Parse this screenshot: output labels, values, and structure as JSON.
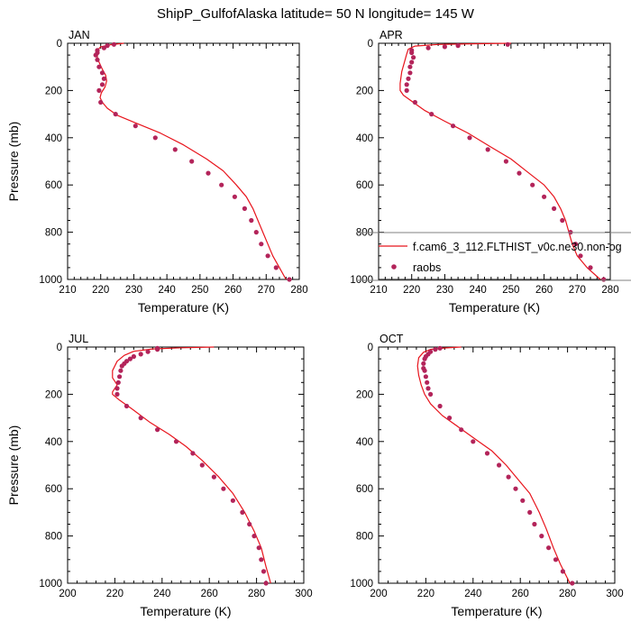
{
  "title": "ShipP_GulfofAlaska  latitude= 50 N longitude= 145 W",
  "colors": {
    "model": "#e8141c",
    "obs": "#b3245a",
    "axis": "#000000",
    "legend_box": "#808080"
  },
  "legend": {
    "model_label": "f.cam6_3_112.FLTHIST_v0c.ne30.non-og",
    "obs_label": "raobs"
  },
  "chart_data": [
    {
      "type": "line",
      "panel": "JAN",
      "xlabel": "Temperature (K)",
      "ylabel": "Pressure (mb)",
      "xlim": [
        210,
        280
      ],
      "ylim": [
        1000,
        0
      ],
      "xticks": [
        210,
        220,
        230,
        240,
        250,
        260,
        270,
        280
      ],
      "yticks": [
        0,
        200,
        400,
        600,
        800,
        1000
      ],
      "series": [
        {
          "name": "f.cam6_3_112.FLTHIST_v0c.ne30.non-og",
          "kind": "line",
          "points": [
            [
              227,
              0
            ],
            [
              223,
              6
            ],
            [
              220,
              15
            ],
            [
              219,
              30
            ],
            [
              219,
              60
            ],
            [
              219.5,
              80
            ],
            [
              220.5,
              110
            ],
            [
              221.5,
              135
            ],
            [
              221.8,
              160
            ],
            [
              221.3,
              185
            ],
            [
              220.2,
              210
            ],
            [
              219.8,
              230
            ],
            [
              220.5,
              250
            ],
            [
              222,
              275
            ],
            [
              225,
              305
            ],
            [
              231,
              340
            ],
            [
              238,
              380
            ],
            [
              245,
              430
            ],
            [
              252,
              490
            ],
            [
              257,
              540
            ],
            [
              261,
              600
            ],
            [
              264,
              650
            ],
            [
              266,
              700
            ],
            [
              267.5,
              750
            ],
            [
              269,
              800
            ],
            [
              270.5,
              850
            ],
            [
              272,
              900
            ],
            [
              274,
              950
            ],
            [
              276,
              1000
            ]
          ]
        },
        {
          "name": "raobs",
          "kind": "scatter",
          "points": [
            [
              224,
              5
            ],
            [
              222,
              10
            ],
            [
              221,
              20
            ],
            [
              219,
              30
            ],
            [
              219,
              40
            ],
            [
              218.5,
              50
            ],
            [
              219,
              70
            ],
            [
              219.5,
              100
            ],
            [
              220.5,
              125
            ],
            [
              221,
              150
            ],
            [
              220.5,
              175
            ],
            [
              219.5,
              200
            ],
            [
              220,
              250
            ],
            [
              224.5,
              300
            ],
            [
              230.5,
              350
            ],
            [
              236.5,
              400
            ],
            [
              242.5,
              450
            ],
            [
              247.5,
              500
            ],
            [
              252.5,
              550
            ],
            [
              256.5,
              600
            ],
            [
              260.5,
              650
            ],
            [
              263.5,
              700
            ],
            [
              265.5,
              750
            ],
            [
              267,
              800
            ],
            [
              268.5,
              850
            ],
            [
              270.5,
              900
            ],
            [
              273,
              950
            ],
            [
              277,
              1000
            ]
          ]
        }
      ]
    },
    {
      "type": "line",
      "panel": "APR",
      "xlabel": "Temperature (K)",
      "ylabel": "",
      "xlim": [
        210,
        280
      ],
      "ylim": [
        1000,
        0
      ],
      "xticks": [
        210,
        220,
        230,
        240,
        250,
        260,
        270,
        280
      ],
      "yticks": [
        0,
        200,
        400,
        600,
        800,
        1000
      ],
      "series": [
        {
          "name": "f.cam6_3_112.FLTHIST_v0c.ne30.non-og",
          "kind": "line",
          "points": [
            [
              250,
              0
            ],
            [
              240,
              2
            ],
            [
              228,
              5
            ],
            [
              221,
              12
            ],
            [
              219,
              25
            ],
            [
              218.5,
              45
            ],
            [
              218,
              70
            ],
            [
              217,
              120
            ],
            [
              216.5,
              170
            ],
            [
              216.5,
              200
            ],
            [
              217.5,
              220
            ],
            [
              220,
              245
            ],
            [
              224,
              285
            ],
            [
              230,
              330
            ],
            [
              237,
              380
            ],
            [
              244,
              440
            ],
            [
              250,
              490
            ],
            [
              255,
              545
            ],
            [
              260,
              600
            ],
            [
              263,
              650
            ],
            [
              265,
              700
            ],
            [
              266.5,
              750
            ],
            [
              267.5,
              800
            ],
            [
              268.5,
              850
            ],
            [
              270,
              900
            ],
            [
              273,
              950
            ],
            [
              277,
              1000
            ]
          ]
        },
        {
          "name": "raobs",
          "kind": "scatter",
          "points": [
            [
              249,
              5
            ],
            [
              234,
              10
            ],
            [
              230,
              15
            ],
            [
              225,
              20
            ],
            [
              220,
              30
            ],
            [
              220,
              40
            ],
            [
              220.5,
              60
            ],
            [
              220,
              80
            ],
            [
              219.5,
              100
            ],
            [
              219.5,
              125
            ],
            [
              219,
              150
            ],
            [
              218.5,
              175
            ],
            [
              218.5,
              200
            ],
            [
              221,
              250
            ],
            [
              226,
              300
            ],
            [
              232.5,
              350
            ],
            [
              237.5,
              400
            ],
            [
              243,
              450
            ],
            [
              248.5,
              500
            ],
            [
              252.5,
              550
            ],
            [
              256.5,
              600
            ],
            [
              260,
              650
            ],
            [
              263,
              700
            ],
            [
              265.5,
              750
            ],
            [
              268,
              800
            ],
            [
              269.5,
              850
            ],
            [
              271,
              900
            ],
            [
              274,
              950
            ],
            [
              278,
              1000
            ]
          ]
        }
      ]
    },
    {
      "type": "line",
      "panel": "JUL",
      "xlabel": "Temperature (K)",
      "ylabel": "Pressure (mb)",
      "xlim": [
        200,
        300
      ],
      "ylim": [
        1000,
        0
      ],
      "xticks": [
        200,
        220,
        240,
        260,
        280,
        300
      ],
      "yticks": [
        0,
        200,
        400,
        600,
        800,
        1000
      ],
      "series": [
        {
          "name": "f.cam6_3_112.FLTHIST_v0c.ne30.non-og",
          "kind": "line",
          "points": [
            [
              262,
              0
            ],
            [
              248,
              3
            ],
            [
              236,
              8
            ],
            [
              228,
              18
            ],
            [
              224,
              35
            ],
            [
              221,
              60
            ],
            [
              219,
              100
            ],
            [
              219,
              130
            ],
            [
              221,
              160
            ],
            [
              219,
              190
            ],
            [
              219,
              200
            ],
            [
              222,
              225
            ],
            [
              227,
              260
            ],
            [
              235,
              320
            ],
            [
              243,
              370
            ],
            [
              250,
              420
            ],
            [
              257,
              480
            ],
            [
              264,
              550
            ],
            [
              270,
              620
            ],
            [
              275,
              700
            ],
            [
              279,
              780
            ],
            [
              282,
              850
            ],
            [
              284,
              930
            ],
            [
              286,
              1000
            ]
          ]
        },
        {
          "name": "raobs",
          "kind": "scatter",
          "points": [
            [
              238,
              5
            ],
            [
              238,
              10
            ],
            [
              234,
              20
            ],
            [
              231,
              30
            ],
            [
              228,
              40
            ],
            [
              226.5,
              50
            ],
            [
              225,
              60
            ],
            [
              224,
              70
            ],
            [
              223,
              80
            ],
            [
              222.5,
              100
            ],
            [
              222,
              125
            ],
            [
              221.5,
              150
            ],
            [
              221,
              175
            ],
            [
              221,
              200
            ],
            [
              225,
              250
            ],
            [
              231,
              300
            ],
            [
              238,
              350
            ],
            [
              246,
              400
            ],
            [
              253,
              450
            ],
            [
              257,
              500
            ],
            [
              262,
              550
            ],
            [
              266,
              600
            ],
            [
              270,
              650
            ],
            [
              274,
              700
            ],
            [
              277,
              750
            ],
            [
              279,
              800
            ],
            [
              281,
              850
            ],
            [
              282,
              900
            ],
            [
              283,
              950
            ],
            [
              284,
              1000
            ]
          ]
        }
      ]
    },
    {
      "type": "line",
      "panel": "OCT",
      "xlabel": "Temperature (K)",
      "ylabel": "",
      "xlim": [
        200,
        300
      ],
      "ylim": [
        1000,
        0
      ],
      "xticks": [
        200,
        220,
        240,
        260,
        280,
        300
      ],
      "yticks": [
        0,
        200,
        400,
        600,
        800,
        1000
      ],
      "series": [
        {
          "name": "f.cam6_3_112.FLTHIST_v0c.ne30.non-og",
          "kind": "line",
          "points": [
            [
              235,
              0
            ],
            [
              228,
              4
            ],
            [
              222,
              10
            ],
            [
              219,
              22
            ],
            [
              217,
              45
            ],
            [
              216.5,
              80
            ],
            [
              217,
              120
            ],
            [
              218,
              160
            ],
            [
              219.5,
              200
            ],
            [
              222,
              240
            ],
            [
              227,
              290
            ],
            [
              234,
              340
            ],
            [
              241,
              390
            ],
            [
              248,
              440
            ],
            [
              254,
              500
            ],
            [
              259,
              560
            ],
            [
              264,
              620
            ],
            [
              268,
              700
            ],
            [
              271,
              770
            ],
            [
              274,
              850
            ],
            [
              277,
              920
            ],
            [
              281,
              1000
            ]
          ]
        },
        {
          "name": "raobs",
          "kind": "scatter",
          "points": [
            [
              226,
              5
            ],
            [
              224,
              10
            ],
            [
              222,
              20
            ],
            [
              221,
              30
            ],
            [
              220,
              40
            ],
            [
              219.5,
              50
            ],
            [
              219,
              70
            ],
            [
              219,
              90
            ],
            [
              219.5,
              100
            ],
            [
              220,
              125
            ],
            [
              220.5,
              150
            ],
            [
              221,
              175
            ],
            [
              222,
              200
            ],
            [
              226,
              250
            ],
            [
              230,
              300
            ],
            [
              235,
              350
            ],
            [
              240,
              400
            ],
            [
              246,
              450
            ],
            [
              251,
              500
            ],
            [
              255,
              550
            ],
            [
              258,
              600
            ],
            [
              261,
              650
            ],
            [
              264,
              700
            ],
            [
              266,
              750
            ],
            [
              269,
              800
            ],
            [
              272,
              850
            ],
            [
              275,
              900
            ],
            [
              278,
              950
            ],
            [
              282,
              1000
            ]
          ]
        }
      ]
    }
  ]
}
